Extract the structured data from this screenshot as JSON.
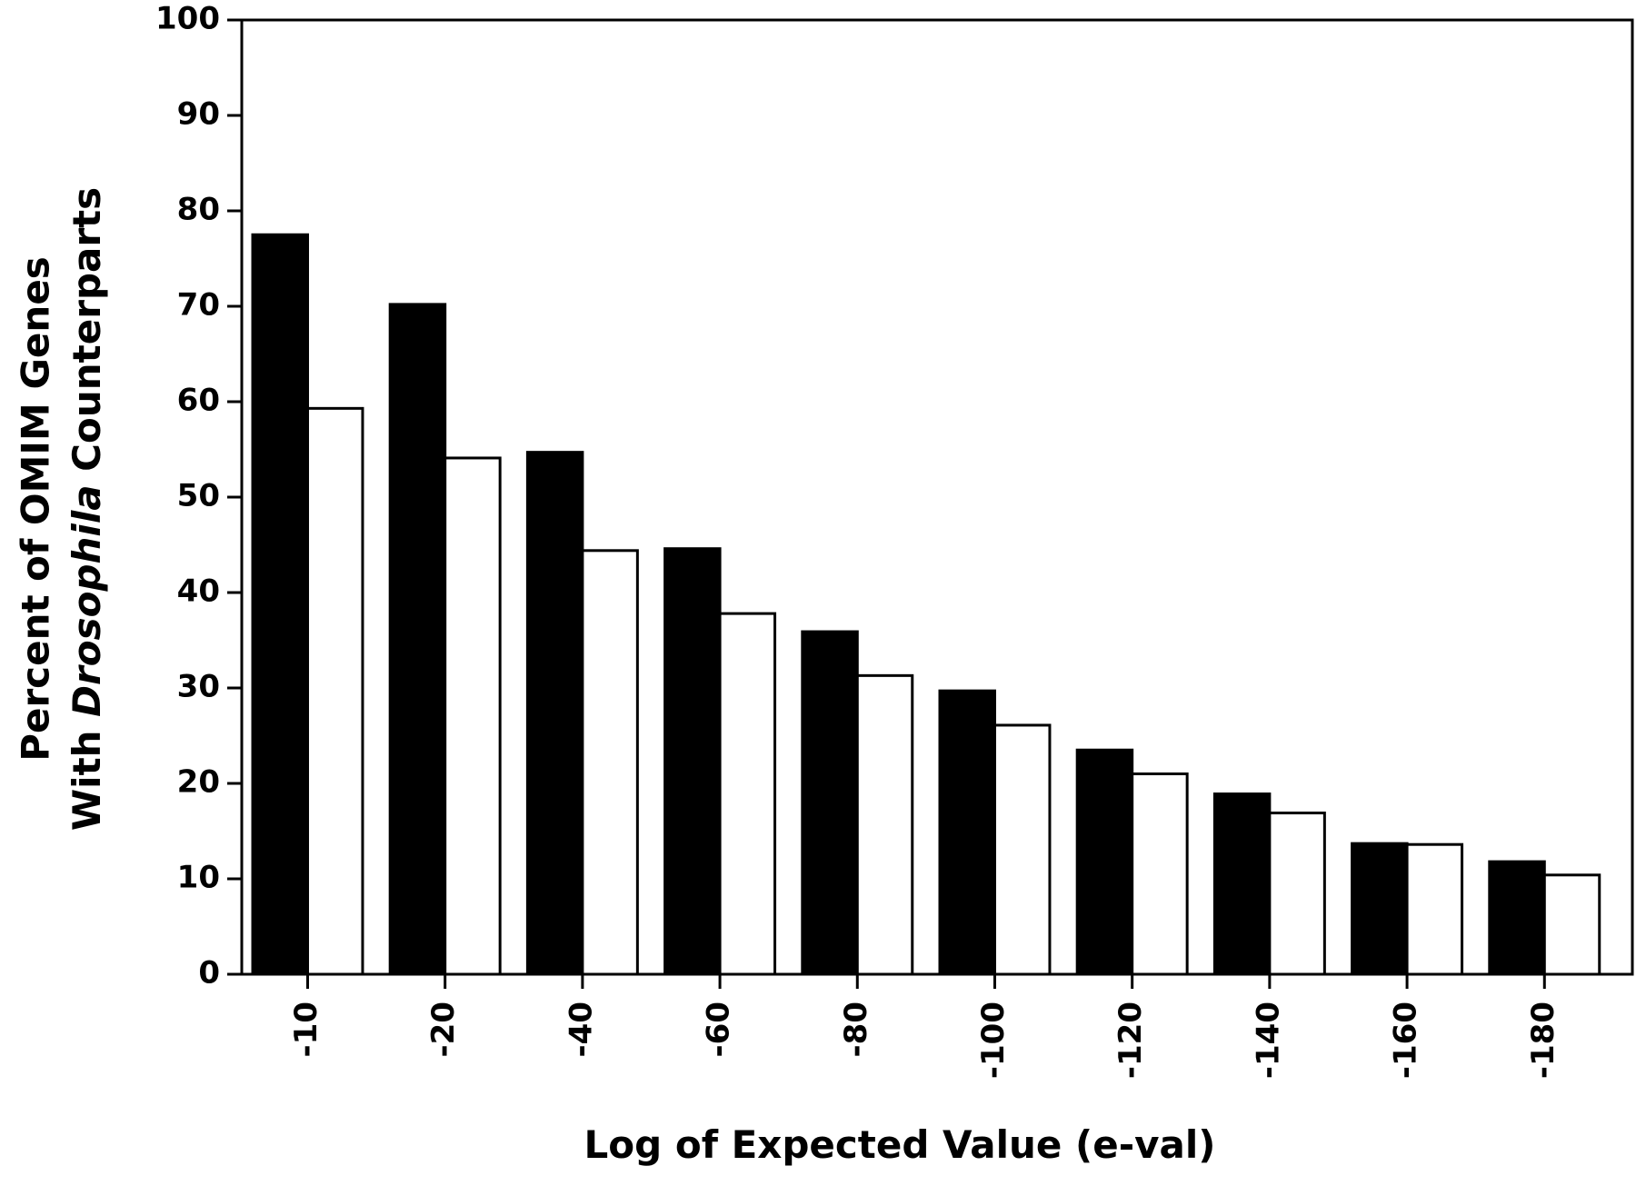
{
  "chart_data": {
    "type": "bar",
    "categories": [
      "-10",
      "-20",
      "-40",
      "-60",
      "-80",
      "-100",
      "-120",
      "-140",
      "-160",
      "-180"
    ],
    "series": [
      {
        "values": [
          77.5,
          70.2,
          54.7,
          44.6,
          35.9,
          29.7,
          23.5,
          18.9,
          13.7,
          11.8
        ],
        "color": "#000000"
      },
      {
        "values": [
          59.3,
          54.1,
          44.4,
          37.8,
          31.3,
          26.1,
          21.0,
          16.9,
          13.6,
          10.4
        ],
        "color": "#ffffff"
      }
    ],
    "ylabel_line1": "Percent of OMIM Genes",
    "ylabel_line2_prefix": "With ",
    "ylabel_line2_italic": "Drosophila",
    "ylabel_line2_suffix": " Counterparts",
    "xlabel": "Log of Expected Value (e-val)",
    "ylim": [
      0,
      100
    ],
    "yticks": [
      "0",
      "10",
      "20",
      "30",
      "40",
      "50",
      "60",
      "70",
      "80",
      "90",
      "100"
    ],
    "grid": false,
    "legend": "none"
  }
}
